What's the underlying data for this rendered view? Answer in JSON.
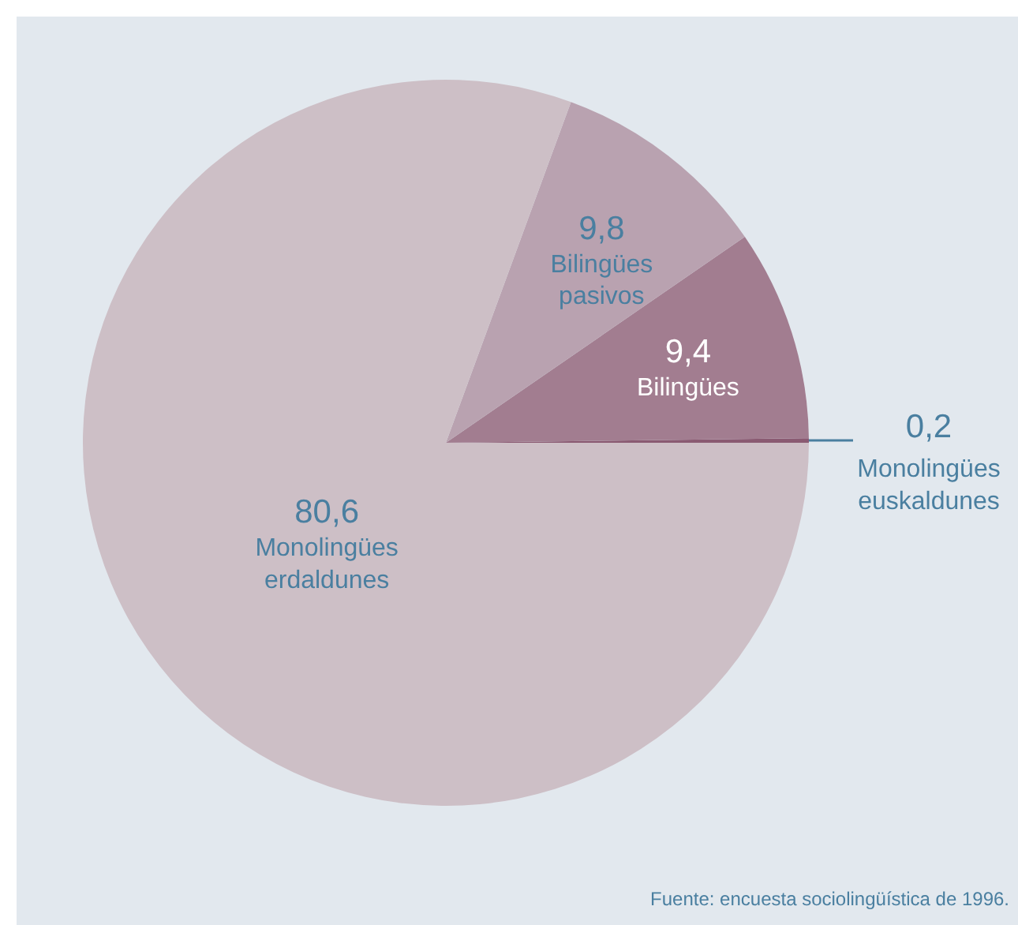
{
  "chart_data": {
    "type": "pie",
    "categories": [
      "Monolingües euskaldunes",
      "Bilingües",
      "Bilingües pasivos",
      "Monolingües erdaldunes"
    ],
    "values": [
      0.2,
      9.4,
      9.8,
      80.6
    ],
    "colors": [
      "#8a5a72",
      "#a27d90",
      "#b9a2b0",
      "#cdbfc6"
    ],
    "value_labels": [
      "0,2",
      "9,4",
      "9,8",
      "80,6"
    ],
    "annotations": [
      "Fuente: encuesta sociolingüística de 1996."
    ]
  }
}
